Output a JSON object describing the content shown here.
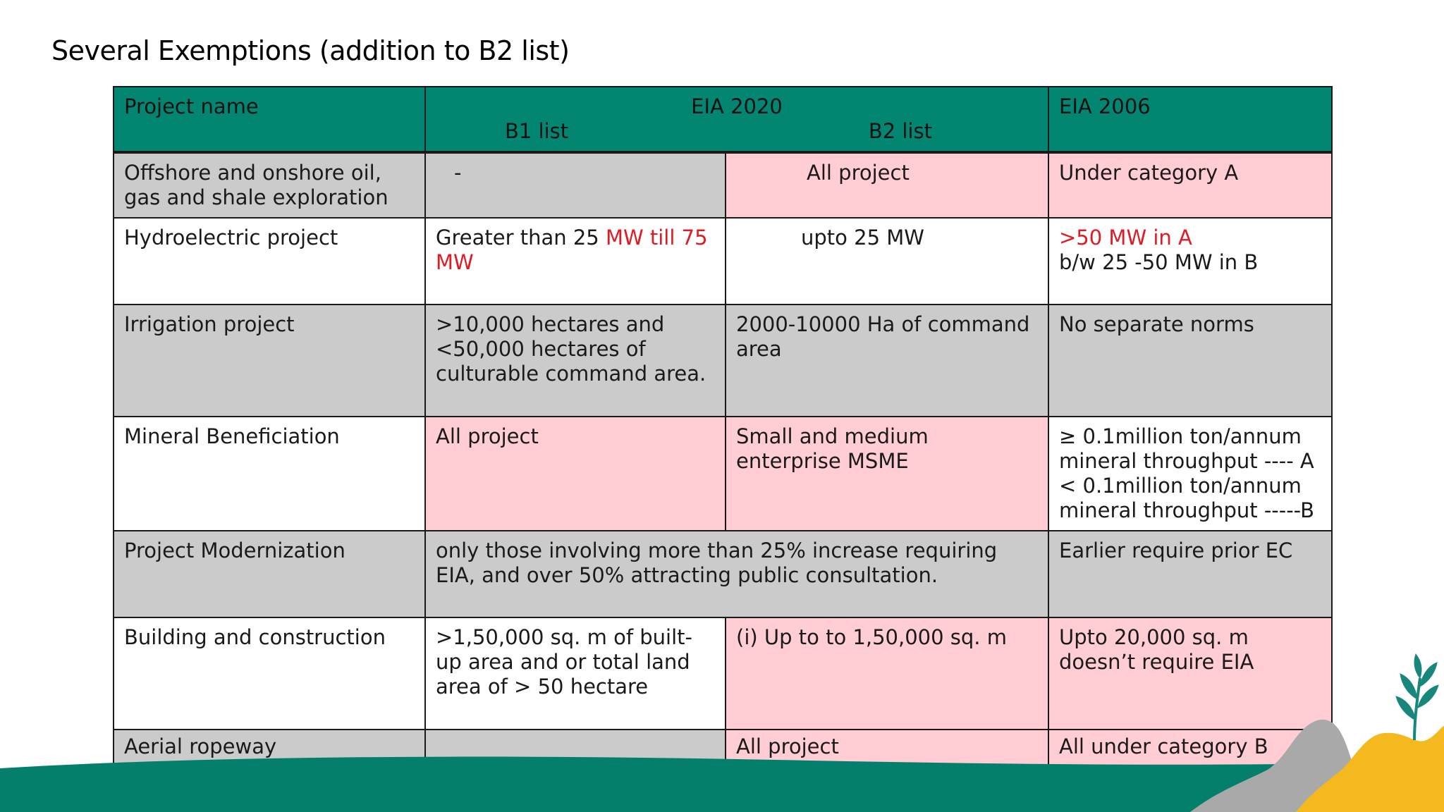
{
  "title": "Several Exemptions (addition to B2 list)",
  "header": {
    "project_name": "Project name",
    "eia2020": "EIA 2020",
    "b1": "B1 list",
    "b2": "B2 list",
    "eia2006": "EIA 2006"
  },
  "rows": [
    {
      "name": "Offshore and onshore oil, gas and shale exploration",
      "b1": "-",
      "b2": "All project",
      "eia2006": "Under category A"
    },
    {
      "name": "Hydroelectric project",
      "b1_prefix": "Greater than 25 ",
      "b1_red": "MW till 75 MW",
      "b2": "upto 25 MW",
      "eia2006_red": ">50 MW in A",
      "eia2006_line2": "b/w 25 -50 MW in B"
    },
    {
      "name": "Irrigation project",
      "b1": ">10,000 hectares and <50,000 hectares of culturable command area.",
      "b2": "2000-10000 Ha of command area",
      "eia2006": "No  separate norms"
    },
    {
      "name": "Mineral Beneficiation",
      "b1": "All project",
      "b2": "Small and medium enterprise MSME",
      "eia2006_lines": [
        "≥ 0.1million ton/annum",
        "mineral throughput ---- A",
        "< 0.1million ton/annum",
        "mineral throughput -----B"
      ]
    },
    {
      "name": "Project Modernization",
      "merged": "only those involving more than 25% increase requiring EIA, and over 50% attracting public consultation.",
      "eia2006": "Earlier require prior EC"
    },
    {
      "name": "Building and construction",
      "b1": ">1,50,000 sq. m of built-up area and or total land area of > 50 hectare",
      "b2": "(i) Up to to 1,50,000 sq. m",
      "eia2006": "Upto 20,000 sq. m doesn’t require EIA"
    },
    {
      "name": "Aerial ropeway",
      "b1": "",
      "b2": "All project",
      "eia2006": "All under category B"
    }
  ],
  "colors": {
    "header_teal": "#028672",
    "gray": "#cbcbcb",
    "pink": "#ffcdd3",
    "red_text": "#e01b24",
    "wave_teal": "#037f6c",
    "mountain_gray": "#a9a9a9",
    "hill_yellow": "#f4b91e",
    "leaf_teal": "#16877a"
  }
}
